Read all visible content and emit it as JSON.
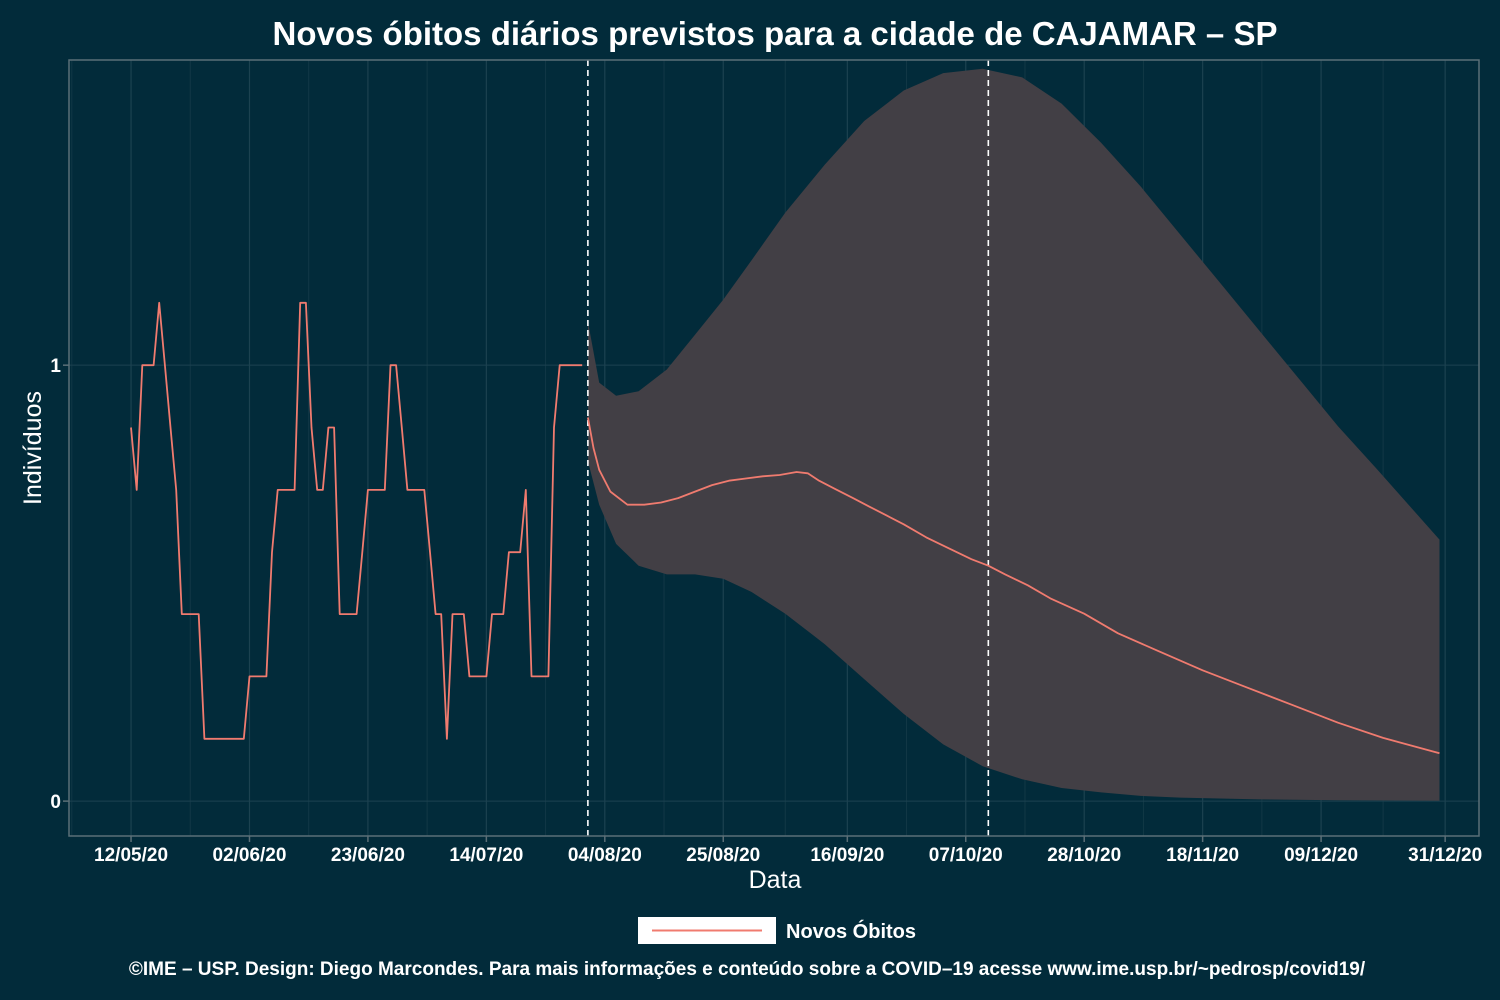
{
  "chart_data": {
    "type": "line",
    "title": "Novos óbitos diários previstos para a cidade de CAJAMAR – SP",
    "xlabel": "Data",
    "ylabel": "Indivíduos",
    "x_tick_labels": [
      "12/05/20",
      "02/06/20",
      "23/06/20",
      "14/07/20",
      "04/08/20",
      "25/08/20",
      "16/09/20",
      "07/10/20",
      "28/10/20",
      "18/11/20",
      "09/12/20",
      "31/12/20"
    ],
    "x_tick_dates": [
      "2020-05-12",
      "2020-06-02",
      "2020-06-23",
      "2020-07-14",
      "2020-08-04",
      "2020-08-25",
      "2020-09-16",
      "2020-10-07",
      "2020-10-28",
      "2020-11-18",
      "2020-12-09",
      "2020-12-31"
    ],
    "y_tick_labels": [
      "0",
      "1"
    ],
    "y_ticks": [
      0,
      1
    ],
    "xlim": [
      "2020-05-01",
      "2021-01-06"
    ],
    "ylim": [
      -0.08,
      1.7
    ],
    "vlines": [
      "2020-08-01",
      "2020-10-11"
    ],
    "grid": true,
    "legend_position": "bottom",
    "series": [
      {
        "name": "Novos Óbitos",
        "color": "#f07b6f",
        "observed": [
          [
            "2020-05-12",
            0.857
          ],
          [
            "2020-05-13",
            0.714
          ],
          [
            "2020-05-14",
            1
          ],
          [
            "2020-05-15",
            1
          ],
          [
            "2020-05-16",
            1
          ],
          [
            "2020-05-17",
            1.143
          ],
          [
            "2020-05-18",
            1
          ],
          [
            "2020-05-19",
            0.857
          ],
          [
            "2020-05-20",
            0.714
          ],
          [
            "2020-05-21",
            0.429
          ],
          [
            "2020-05-22",
            0.429
          ],
          [
            "2020-05-23",
            0.429
          ],
          [
            "2020-05-24",
            0.429
          ],
          [
            "2020-05-25",
            0.143
          ],
          [
            "2020-05-26",
            0.143
          ],
          [
            "2020-05-27",
            0.143
          ],
          [
            "2020-05-28",
            0.143
          ],
          [
            "2020-05-29",
            0.143
          ],
          [
            "2020-05-30",
            0.143
          ],
          [
            "2020-05-31",
            0.143
          ],
          [
            "2020-06-01",
            0.143
          ],
          [
            "2020-06-02",
            0.286
          ],
          [
            "2020-06-03",
            0.286
          ],
          [
            "2020-06-04",
            0.286
          ],
          [
            "2020-06-05",
            0.286
          ],
          [
            "2020-06-06",
            0.571
          ],
          [
            "2020-06-07",
            0.714
          ],
          [
            "2020-06-08",
            0.714
          ],
          [
            "2020-06-09",
            0.714
          ],
          [
            "2020-06-10",
            0.714
          ],
          [
            "2020-06-11",
            1.143
          ],
          [
            "2020-06-12",
            1.143
          ],
          [
            "2020-06-13",
            0.857
          ],
          [
            "2020-06-14",
            0.714
          ],
          [
            "2020-06-15",
            0.714
          ],
          [
            "2020-06-16",
            0.857
          ],
          [
            "2020-06-17",
            0.857
          ],
          [
            "2020-06-18",
            0.429
          ],
          [
            "2020-06-19",
            0.429
          ],
          [
            "2020-06-20",
            0.429
          ],
          [
            "2020-06-21",
            0.429
          ],
          [
            "2020-06-22",
            0.571
          ],
          [
            "2020-06-23",
            0.714
          ],
          [
            "2020-06-24",
            0.714
          ],
          [
            "2020-06-25",
            0.714
          ],
          [
            "2020-06-26",
            0.714
          ],
          [
            "2020-06-27",
            1
          ],
          [
            "2020-06-28",
            1
          ],
          [
            "2020-06-29",
            0.857
          ],
          [
            "2020-06-30",
            0.714
          ],
          [
            "2020-07-01",
            0.714
          ],
          [
            "2020-07-02",
            0.714
          ],
          [
            "2020-07-03",
            0.714
          ],
          [
            "2020-07-04",
            0.571
          ],
          [
            "2020-07-05",
            0.429
          ],
          [
            "2020-07-06",
            0.429
          ],
          [
            "2020-07-07",
            0.143
          ],
          [
            "2020-07-08",
            0.429
          ],
          [
            "2020-07-09",
            0.429
          ],
          [
            "2020-07-10",
            0.429
          ],
          [
            "2020-07-11",
            0.286
          ],
          [
            "2020-07-12",
            0.286
          ],
          [
            "2020-07-13",
            0.286
          ],
          [
            "2020-07-14",
            0.286
          ],
          [
            "2020-07-15",
            0.429
          ],
          [
            "2020-07-16",
            0.429
          ],
          [
            "2020-07-17",
            0.429
          ],
          [
            "2020-07-18",
            0.571
          ],
          [
            "2020-07-19",
            0.571
          ],
          [
            "2020-07-20",
            0.571
          ],
          [
            "2020-07-21",
            0.714
          ],
          [
            "2020-07-22",
            0.286
          ],
          [
            "2020-07-23",
            0.286
          ],
          [
            "2020-07-24",
            0.286
          ],
          [
            "2020-07-25",
            0.286
          ],
          [
            "2020-07-26",
            0.857
          ],
          [
            "2020-07-27",
            1
          ],
          [
            "2020-07-28",
            1
          ],
          [
            "2020-07-29",
            1
          ],
          [
            "2020-07-30",
            1
          ],
          [
            "2020-07-31",
            1
          ]
        ],
        "predicted": [
          [
            "2020-08-01",
            0.88
          ],
          [
            "2020-08-02",
            0.81
          ],
          [
            "2020-08-03",
            0.76
          ],
          [
            "2020-08-05",
            0.71
          ],
          [
            "2020-08-08",
            0.68
          ],
          [
            "2020-08-11",
            0.68
          ],
          [
            "2020-08-14",
            0.685
          ],
          [
            "2020-08-17",
            0.695
          ],
          [
            "2020-08-20",
            0.71
          ],
          [
            "2020-08-23",
            0.725
          ],
          [
            "2020-08-26",
            0.735
          ],
          [
            "2020-08-29",
            0.74
          ],
          [
            "2020-09-01",
            0.745
          ],
          [
            "2020-09-04",
            0.748
          ],
          [
            "2020-09-07",
            0.755
          ],
          [
            "2020-09-09",
            0.752
          ],
          [
            "2020-09-11",
            0.735
          ],
          [
            "2020-09-14",
            0.715
          ],
          [
            "2020-09-17",
            0.695
          ],
          [
            "2020-09-20",
            0.675
          ],
          [
            "2020-09-23",
            0.655
          ],
          [
            "2020-09-26",
            0.635
          ],
          [
            "2020-09-30",
            0.605
          ],
          [
            "2020-10-04",
            0.58
          ],
          [
            "2020-10-08",
            0.555
          ],
          [
            "2020-10-11",
            0.54
          ],
          [
            "2020-10-14",
            0.52
          ],
          [
            "2020-10-18",
            0.495
          ],
          [
            "2020-10-22",
            0.465
          ],
          [
            "2020-10-28",
            0.43
          ],
          [
            "2020-11-03",
            0.385
          ],
          [
            "2020-11-10",
            0.345
          ],
          [
            "2020-11-18",
            0.3
          ],
          [
            "2020-11-26",
            0.26
          ],
          [
            "2020-12-04",
            0.22
          ],
          [
            "2020-12-12",
            0.18
          ],
          [
            "2020-12-20",
            0.145
          ],
          [
            "2020-12-30",
            0.11
          ]
        ],
        "ci_upper": [
          [
            "2020-08-01",
            1.1
          ],
          [
            "2020-08-03",
            0.96
          ],
          [
            "2020-08-06",
            0.93
          ],
          [
            "2020-08-10",
            0.94
          ],
          [
            "2020-08-15",
            0.99
          ],
          [
            "2020-08-20",
            1.07
          ],
          [
            "2020-08-25",
            1.15
          ],
          [
            "2020-08-30",
            1.24
          ],
          [
            "2020-09-05",
            1.35
          ],
          [
            "2020-09-12",
            1.46
          ],
          [
            "2020-09-19",
            1.56
          ],
          [
            "2020-09-26",
            1.63
          ],
          [
            "2020-10-03",
            1.67
          ],
          [
            "2020-10-10",
            1.68
          ],
          [
            "2020-10-17",
            1.66
          ],
          [
            "2020-10-24",
            1.6
          ],
          [
            "2020-10-31",
            1.51
          ],
          [
            "2020-11-07",
            1.41
          ],
          [
            "2020-11-14",
            1.3
          ],
          [
            "2020-11-21",
            1.19
          ],
          [
            "2020-11-28",
            1.08
          ],
          [
            "2020-12-05",
            0.97
          ],
          [
            "2020-12-12",
            0.86
          ],
          [
            "2020-12-19",
            0.76
          ],
          [
            "2020-12-30",
            0.6
          ]
        ],
        "ci_lower": [
          [
            "2020-08-01",
            0.78
          ],
          [
            "2020-08-03",
            0.68
          ],
          [
            "2020-08-06",
            0.59
          ],
          [
            "2020-08-10",
            0.54
          ],
          [
            "2020-08-15",
            0.52
          ],
          [
            "2020-08-20",
            0.52
          ],
          [
            "2020-08-25",
            0.51
          ],
          [
            "2020-08-30",
            0.48
          ],
          [
            "2020-09-05",
            0.43
          ],
          [
            "2020-09-12",
            0.36
          ],
          [
            "2020-09-19",
            0.28
          ],
          [
            "2020-09-26",
            0.2
          ],
          [
            "2020-10-03",
            0.13
          ],
          [
            "2020-10-10",
            0.08
          ],
          [
            "2020-10-17",
            0.05
          ],
          [
            "2020-10-24",
            0.03
          ],
          [
            "2020-10-31",
            0.02
          ],
          [
            "2020-11-07",
            0.012
          ],
          [
            "2020-11-14",
            0.008
          ],
          [
            "2020-11-28",
            0.004
          ],
          [
            "2020-12-12",
            0.002
          ],
          [
            "2020-12-30",
            0.001
          ]
        ]
      }
    ],
    "band_color": "#423f45"
  },
  "legend": {
    "label": "Novos Óbitos"
  },
  "caption": "©IME – USP. Design: Diego Marcondes. Para mais informações e conteúdo sobre a COVID–19 acesse www.ime.usp.br/~pedrosp/covid19/"
}
